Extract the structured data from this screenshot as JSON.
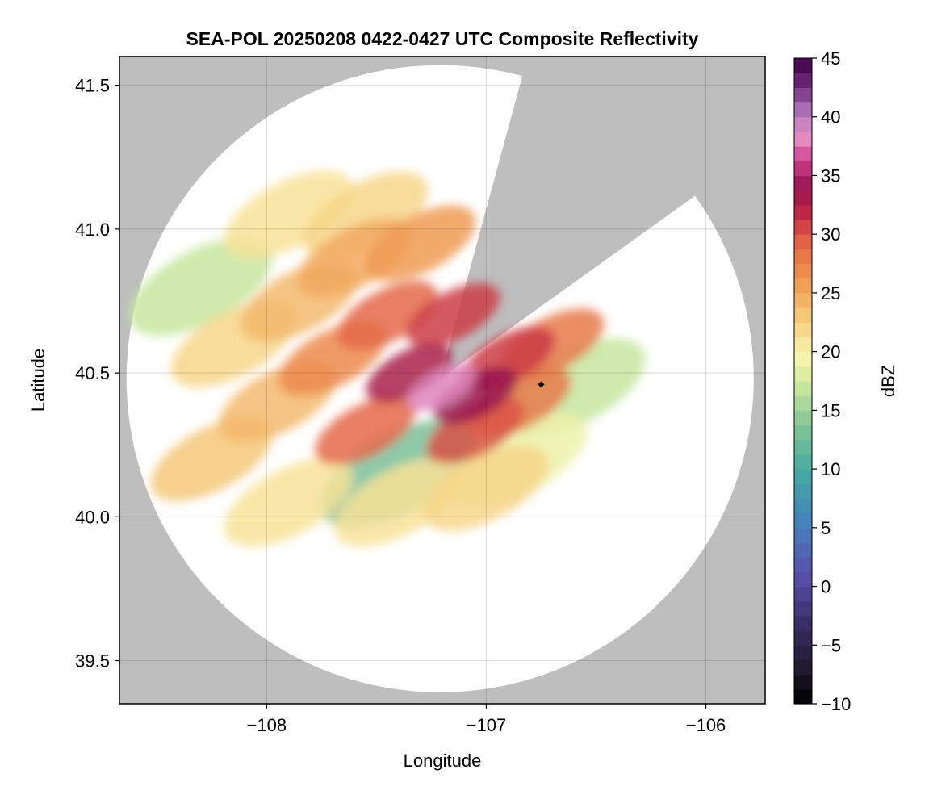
{
  "chart_data": {
    "type": "heatmap",
    "title": "SEA-POL 20250208 0422-0427 UTC Composite Reflectivity",
    "xlabel": "Longitude",
    "ylabel": "Latitude",
    "xlim": [
      -108.67,
      -105.73
    ],
    "ylim": [
      39.35,
      41.6
    ],
    "xticks": [
      -108,
      -107,
      -106
    ],
    "xtick_labels": [
      "−108",
      "−107",
      "−106"
    ],
    "yticks": [
      39.5,
      40.0,
      40.5,
      41.0,
      41.5
    ],
    "ytick_labels": [
      "39.5",
      "40.0",
      "40.5",
      "41.0",
      "41.5"
    ],
    "grid": true,
    "background_color": "#bebebe",
    "radar": {
      "center_lon": -107.21,
      "center_lat": 40.48,
      "range_lat_deg": 1.09,
      "blocked_sectors": [
        {
          "from_lon": -106.84,
          "from_lat": 41.52,
          "to_lon": -106.06,
          "to_lat": 41.11
        }
      ]
    },
    "marker": {
      "lon": -106.75,
      "lat": 40.46,
      "shape": "diamond"
    },
    "colorbar": {
      "label": "dBZ",
      "min": -10,
      "max": 45,
      "step": 1.25,
      "ticks": [
        -10,
        -5,
        0,
        5,
        10,
        15,
        20,
        25,
        30,
        35,
        40,
        45
      ],
      "tick_labels": [
        "−10",
        "−5",
        "0",
        "5",
        "10",
        "15",
        "20",
        "25",
        "30",
        "35",
        "40",
        "45"
      ],
      "colormap": "Spectral_r"
    },
    "echo_regions": [
      {
        "lon": -107.2,
        "lat": 40.45,
        "dbz": 38
      },
      {
        "lon": -107.05,
        "lat": 40.42,
        "dbz": 34
      },
      {
        "lon": -107.35,
        "lat": 40.5,
        "dbz": 33
      },
      {
        "lon": -107.15,
        "lat": 40.7,
        "dbz": 31
      },
      {
        "lon": -106.9,
        "lat": 40.55,
        "dbz": 31
      },
      {
        "lon": -106.85,
        "lat": 40.4,
        "dbz": 28
      },
      {
        "lon": -106.7,
        "lat": 40.6,
        "dbz": 28
      },
      {
        "lon": -107.45,
        "lat": 40.7,
        "dbz": 29
      },
      {
        "lon": -107.55,
        "lat": 40.3,
        "dbz": 29
      },
      {
        "lon": -107.7,
        "lat": 40.55,
        "dbz": 27
      },
      {
        "lon": -107.3,
        "lat": 40.95,
        "dbz": 26
      },
      {
        "lon": -107.6,
        "lat": 40.9,
        "dbz": 25
      },
      {
        "lon": -107.85,
        "lat": 40.75,
        "dbz": 24
      },
      {
        "lon": -107.95,
        "lat": 40.4,
        "dbz": 24
      },
      {
        "lon": -108.15,
        "lat": 40.6,
        "dbz": 22
      },
      {
        "lon": -108.25,
        "lat": 40.2,
        "dbz": 23
      },
      {
        "lon": -107.9,
        "lat": 40.05,
        "dbz": 21
      },
      {
        "lon": -107.4,
        "lat": 40.05,
        "dbz": 21
      },
      {
        "lon": -107.0,
        "lat": 40.1,
        "dbz": 22
      },
      {
        "lon": -106.85,
        "lat": 40.2,
        "dbz": 19
      },
      {
        "lon": -106.6,
        "lat": 40.45,
        "dbz": 17
      },
      {
        "lon": -107.55,
        "lat": 41.05,
        "dbz": 22
      },
      {
        "lon": -107.9,
        "lat": 41.05,
        "dbz": 21
      },
      {
        "lon": -108.3,
        "lat": 40.8,
        "dbz": 17
      },
      {
        "lon": -107.4,
        "lat": 40.15,
        "dbz": 13
      },
      {
        "lon": -107.05,
        "lat": 40.3,
        "dbz": 30
      }
    ]
  }
}
